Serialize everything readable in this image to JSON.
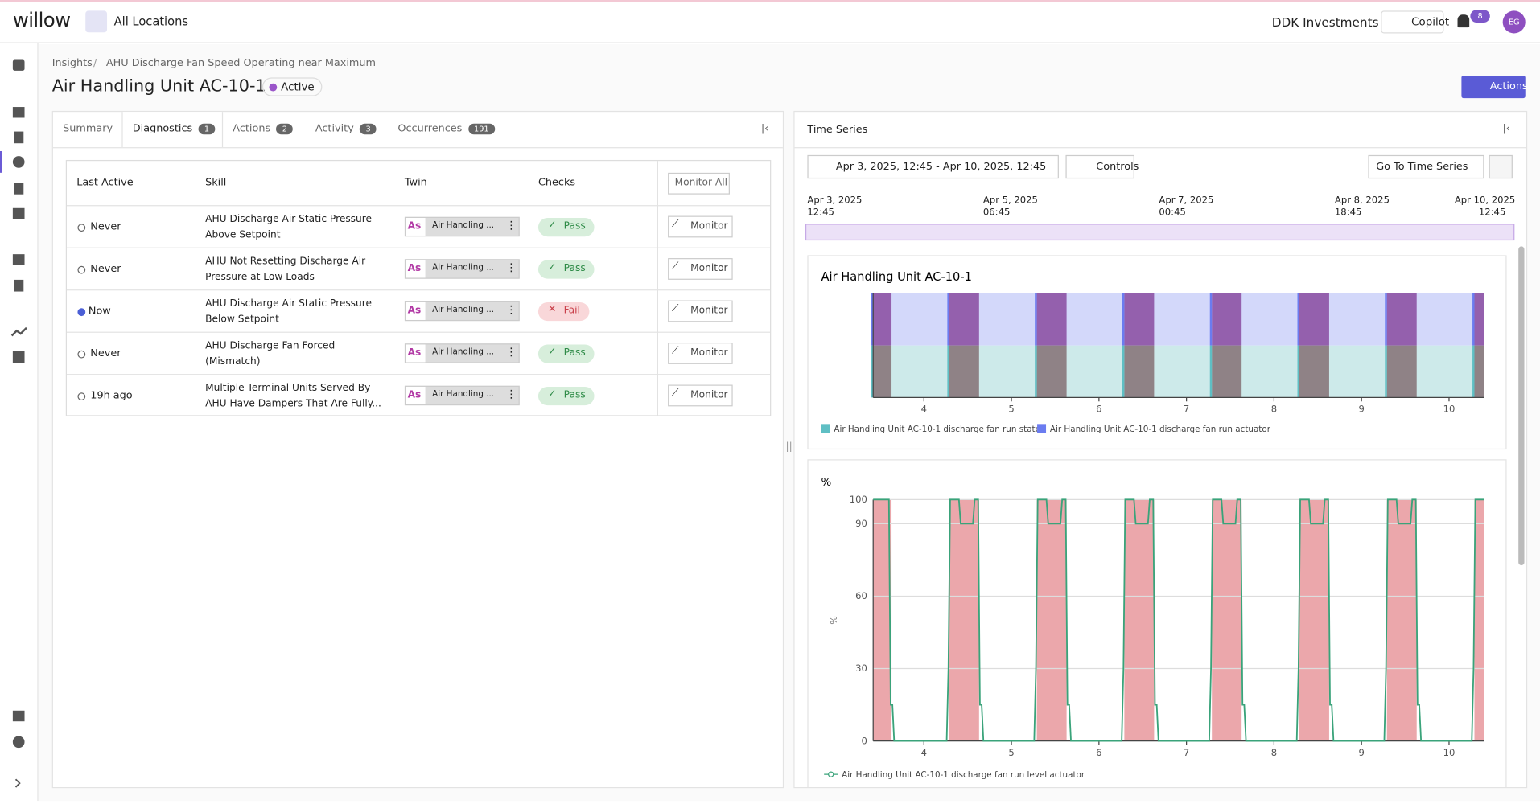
{
  "header": {
    "logo": "willow",
    "location": "All Locations",
    "company": "DDK Investments",
    "copilot": "Copilot",
    "notifications": "8",
    "avatar": "EG"
  },
  "breadcrumb": [
    "Insights",
    "AHU Discharge Fan Speed Operating near Maximum"
  ],
  "title": "Air Handling Unit AC-10-1",
  "status": "Active",
  "actions_button": "Actions",
  "tabs": [
    {
      "label": "Summary"
    },
    {
      "label": "Diagnostics",
      "count": "1"
    },
    {
      "label": "Actions",
      "count": "2"
    },
    {
      "label": "Activity",
      "count": "3"
    },
    {
      "label": "Occurrences",
      "count": "191"
    }
  ],
  "table": {
    "columns": [
      "Last Active",
      "Skill",
      "Twin",
      "Checks"
    ],
    "monitor_all": "Monitor All",
    "rows": [
      {
        "last_active": "Never",
        "skill": "AHU Discharge Air Static Pressure Above Setpoint",
        "twin_badge": "As",
        "twin": "Air Handling ...",
        "check": "Pass",
        "monitor": "Monitor"
      },
      {
        "last_active": "Never",
        "skill": "AHU Not Resetting Discharge Air Pressure at Low Loads",
        "twin_badge": "As",
        "twin": "Air Handling ...",
        "check": "Pass",
        "monitor": "Monitor"
      },
      {
        "last_active": "Now",
        "skill": "AHU Discharge Air Static Pressure Below Setpoint",
        "twin_badge": "As",
        "twin": "Air Handling ...",
        "check": "Fail",
        "monitor": "Monitor"
      },
      {
        "last_active": "Never",
        "skill": "AHU Discharge Fan Forced (Mismatch)",
        "twin_badge": "As",
        "twin": "Air Handling ...",
        "check": "Pass",
        "monitor": "Monitor"
      },
      {
        "last_active": "19h ago",
        "skill": "Multiple Terminal Units Served By AHU Have Dampers That Are Fully...",
        "twin_badge": "As",
        "twin": "Air Handling ...",
        "check": "Pass",
        "monitor": "Monitor"
      }
    ]
  },
  "time_series": {
    "title": "Time Series",
    "date_range": "Apr 3, 2025, 12:45 - Apr 10, 2025, 12:45",
    "controls": "Controls",
    "go_to": "Go To Time Series",
    "timeline_labels": [
      [
        "Apr 3, 2025",
        "12:45"
      ],
      [
        "Apr 5, 2025",
        "06:45"
      ],
      [
        "Apr 7, 2025",
        "00:45"
      ],
      [
        "Apr 8, 2025",
        "18:45"
      ],
      [
        "Apr 10, 2025",
        "12:45"
      ]
    ],
    "charts": [
      {
        "type": "state",
        "title": "Air Handling Unit AC-10-1",
        "xlim": [
          3.42,
          10.4
        ],
        "xticks": [
          4,
          5,
          6,
          7,
          8,
          9,
          10
        ],
        "series": [
          {
            "name": "Air Handling Unit AC-10-1 discharge fan run state",
            "color": "#5fbfc4"
          },
          {
            "name": "Air Handling Unit AC-10-1 discharge fan run actuator",
            "color": "#6b7cf0"
          }
        ],
        "run_periods": {
          "start": [
            3.42,
            4.29,
            5.29,
            6.29,
            7.29,
            8.29,
            9.29,
            10.29
          ],
          "end": [
            3.63,
            4.63,
            5.63,
            6.63,
            7.63,
            8.63,
            9.63,
            10.4
          ]
        }
      },
      {
        "type": "line",
        "unit": "%",
        "y_label": "%",
        "xlim": [
          3.42,
          10.4
        ],
        "ylim": [
          0,
          100
        ],
        "xticks": [
          4,
          5,
          6,
          7,
          8,
          9,
          10
        ],
        "yticks": [
          0,
          30,
          60,
          90,
          100
        ],
        "series": [
          {
            "name": "Air Handling Unit AC-10-1 discharge fan run level actuator",
            "color": "#3aa37a",
            "x": [
              3.42,
              3.6,
              3.62,
              3.64,
              3.66,
              4.26,
              4.28,
              4.3,
              4.4,
              4.42,
              4.56,
              4.58,
              4.62,
              4.64,
              4.66,
              4.68,
              5.26,
              5.28,
              5.3,
              5.4,
              5.42,
              5.56,
              5.58,
              5.62,
              5.64,
              5.66,
              5.68,
              6.26,
              6.28,
              6.3,
              6.4,
              6.42,
              6.56,
              6.58,
              6.62,
              6.64,
              6.66,
              6.68,
              7.26,
              7.28,
              7.3,
              7.4,
              7.42,
              7.56,
              7.58,
              7.62,
              7.64,
              7.66,
              7.68,
              8.26,
              8.28,
              8.3,
              8.4,
              8.42,
              8.56,
              8.58,
              8.62,
              8.64,
              8.66,
              8.68,
              9.26,
              9.28,
              9.3,
              9.4,
              9.42,
              9.56,
              9.58,
              9.62,
              9.64,
              9.66,
              9.68,
              10.26,
              10.28,
              10.3,
              10.4
            ],
            "values": [
              100,
              100,
              15,
              15,
              0,
              0,
              30,
              100,
              100,
              90,
              90,
              100,
              100,
              15,
              15,
              0,
              0,
              30,
              100,
              100,
              90,
              90,
              100,
              100,
              15,
              15,
              0,
              0,
              30,
              100,
              100,
              90,
              90,
              100,
              100,
              15,
              15,
              0,
              0,
              30,
              100,
              100,
              90,
              90,
              100,
              100,
              15,
              15,
              0,
              0,
              30,
              100,
              100,
              90,
              90,
              100,
              100,
              15,
              15,
              0,
              0,
              30,
              100,
              100,
              90,
              90,
              100,
              100,
              15,
              15,
              0,
              0,
              30,
              100,
              100
            ]
          }
        ],
        "run_periods": {
          "start": [
            3.42,
            4.29,
            5.29,
            6.29,
            7.29,
            8.29,
            9.29,
            10.29
          ],
          "end": [
            3.63,
            4.63,
            5.63,
            6.63,
            7.63,
            8.63,
            9.63,
            10.4
          ]
        },
        "band_color": "#eba7ab"
      }
    ]
  }
}
